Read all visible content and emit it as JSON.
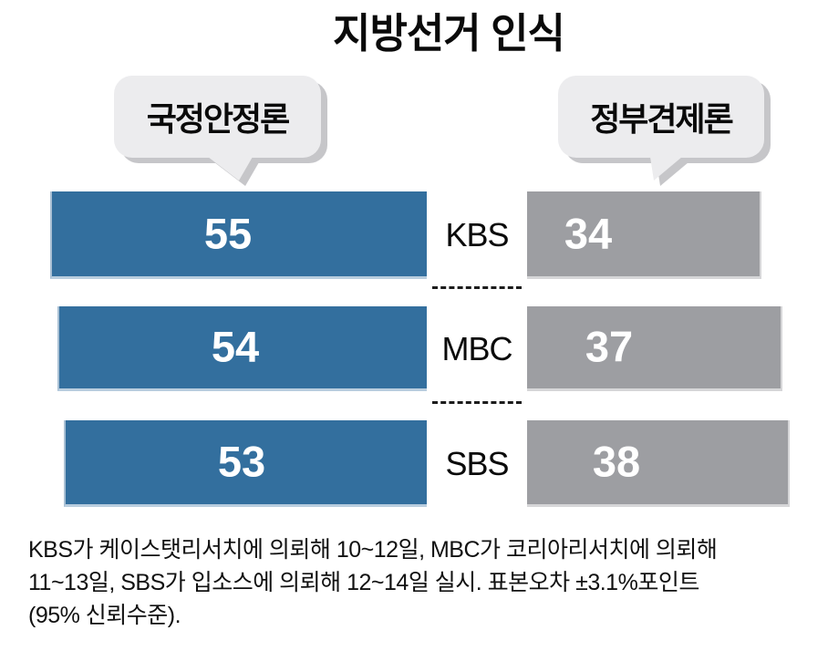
{
  "title": "지방선거 인식",
  "legend": {
    "left_label": "국정안정론",
    "right_label": "정부견제론"
  },
  "chart_data": {
    "type": "bar",
    "orientation": "horizontal",
    "layout": "diverging-bars-with-center-category-labels",
    "title": "지방선거 인식",
    "categories": [
      "KBS",
      "MBC",
      "SBS"
    ],
    "series": [
      {
        "name": "국정안정론",
        "side": "left",
        "color": "#336f9e",
        "values": [
          55,
          54,
          53
        ]
      },
      {
        "name": "정부견제론",
        "side": "right",
        "color": "#9d9ea2",
        "values": [
          34,
          37,
          38
        ]
      }
    ],
    "value_range": [
      0,
      60
    ],
    "grid": false,
    "legend_position": "top-speech-bubbles"
  },
  "footnote": {
    "lines": [
      "KBS가 케이스탯리서치에 의뢰해 10~12일, MBC가 코리아리서치에 의뢰해",
      "11~13일, SBS가 입소스에 의뢰해 12~14일 실시. 표본오차 ±3.1%포인트",
      "(95% 신뢰수준)."
    ]
  },
  "colors": {
    "left_bar": "#336f9e",
    "right_bar": "#9d9ea2",
    "bubble_fill": "#ececee",
    "bubble_shadow": "#c6c6c9",
    "value_text": "#ffffff",
    "text": "#0a0a0a"
  }
}
